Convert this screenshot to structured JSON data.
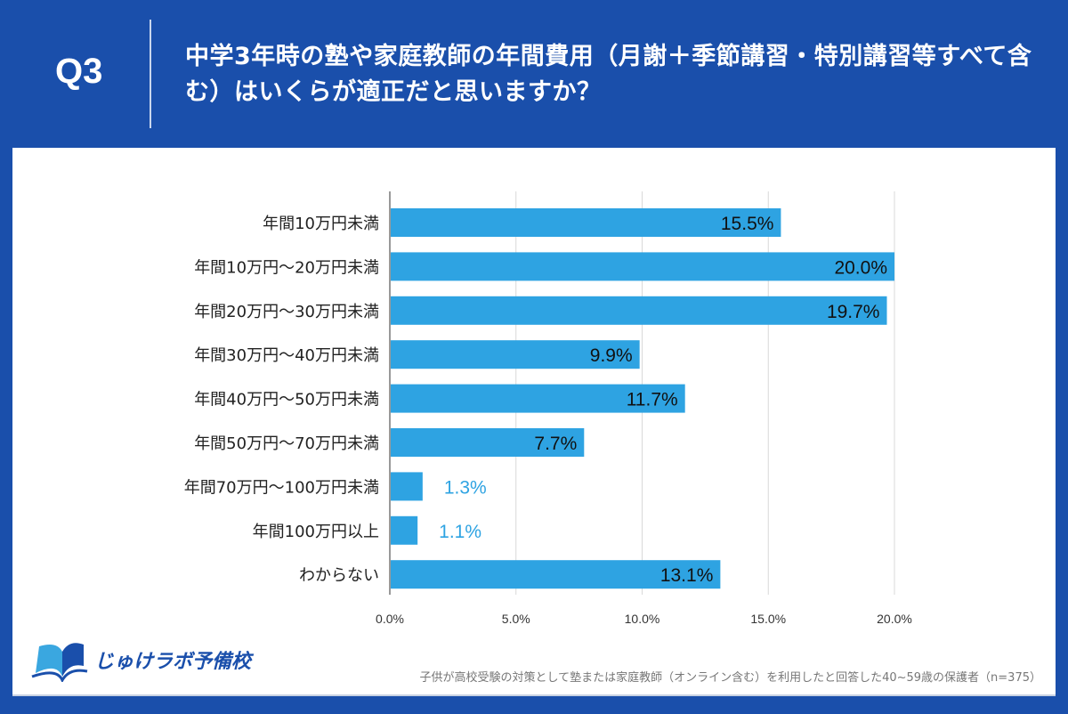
{
  "header": {
    "question_no": "Q3",
    "title": "中学3年時の塾や家庭教師の年間費用（月謝＋季節講習・特別講習等すべて含む）はいくらが適正だと思いますか？"
  },
  "chart_data": {
    "type": "bar",
    "orientation": "horizontal",
    "categories": [
      "年間10万円未満",
      "年間10万円～20万円未満",
      "年間20万円～30万円未満",
      "年間30万円～40万円未満",
      "年間40万円～50万円未満",
      "年間50万円～70万円未満",
      "年間70万円～100万円未満",
      "年間100万円以上",
      "わからない"
    ],
    "values": [
      15.5,
      20.0,
      19.7,
      9.9,
      11.7,
      7.7,
      1.3,
      1.1,
      13.1
    ],
    "data_labels": [
      "15.5%",
      "20.0%",
      "19.7%",
      "9.9%",
      "11.7%",
      "7.7%",
      "1.3%",
      "1.1%",
      "13.1%"
    ],
    "xticks": [
      "0.0%",
      "5.0%",
      "10.0%",
      "15.0%",
      "20.0%"
    ],
    "xlim": [
      0,
      20
    ],
    "grid": true,
    "bar_color": "#2ea3e2"
  },
  "footer": {
    "logo_text": "じゅけラボ予備校",
    "note": "子供が高校受験の対策として塾または家庭教師（オンライン含む）を利用したと回答した40~59歳の保護者（n=375）"
  }
}
